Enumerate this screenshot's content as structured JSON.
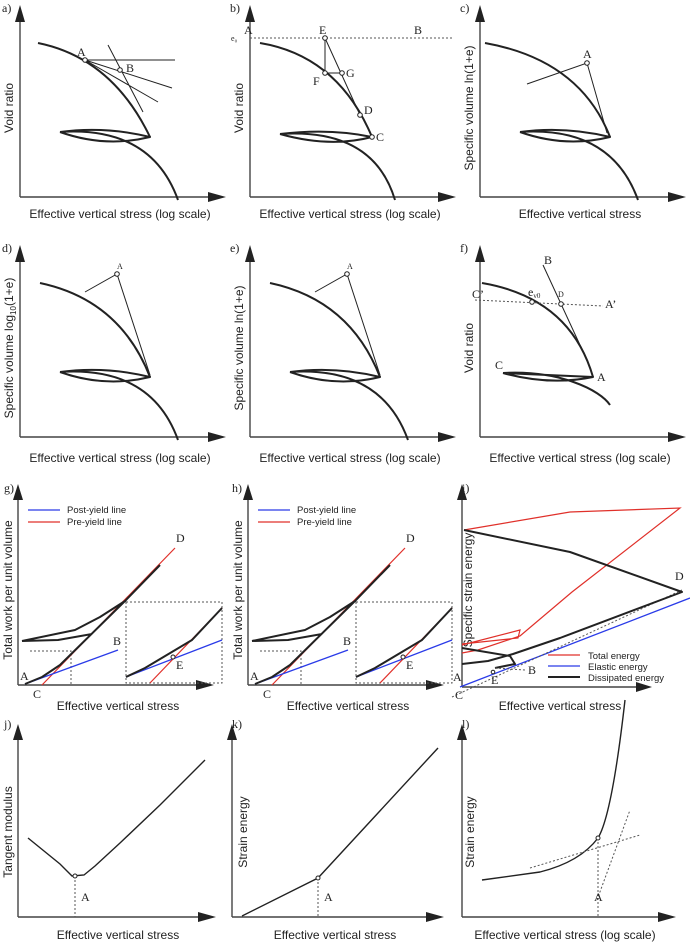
{
  "panels": {
    "a": {
      "tag": "a)",
      "ylabel": "Void ratio",
      "xlabel": "Effective vertical stress (log scale)",
      "points": {
        "A": "A",
        "B": "B"
      }
    },
    "b": {
      "tag": "b)",
      "ylabel": "Void ratio",
      "xlabel": "Effective vertical stress (log scale)",
      "e0": "e₀",
      "points": {
        "A": "A",
        "B": "B",
        "C": "C",
        "D": "D",
        "E": "E",
        "F": "F",
        "G": "G"
      }
    },
    "c": {
      "tag": "c)",
      "ylabel": "Specific volume ln(1+e)",
      "xlabel": "Effective vertical stress",
      "points": {
        "A": "A"
      }
    },
    "d": {
      "tag": "d)",
      "ylabel_pre": "Specific volume log",
      "ylabel_sub": "10",
      "ylabel_post": "(1+e)",
      "xlabel": "Effective vertical stress (log scale)",
      "points": {
        "A": "A"
      }
    },
    "e": {
      "tag": "e)",
      "ylabel": "Specific volume ln(1+e)",
      "xlabel": "Effective vertical stress (log scale)",
      "points": {
        "A": "A"
      }
    },
    "f": {
      "tag": "f)",
      "ylabel": "Void ratio",
      "xlabel": "Effective vertical stress (log scale)",
      "points": {
        "A": "A",
        "Ap": "A’",
        "B": "B",
        "C": "C",
        "Cp": "C’",
        "D": "D",
        "ev0": "e",
        "ev0_sub": "v0"
      }
    },
    "g": {
      "tag": "g)",
      "ylabel": "Total work per unit volume",
      "xlabel": "Effective vertical stress",
      "legend": [
        "Post-yield line",
        "Pre-yield line"
      ],
      "points": {
        "A": "A",
        "B": "B",
        "C": "C",
        "D": "D",
        "E": "E"
      }
    },
    "h": {
      "tag": "h)",
      "ylabel": "Total work per unit volume",
      "xlabel": "Effective vertical stress",
      "legend": [
        "Post-yield line",
        "Pre-yield line"
      ],
      "points": {
        "A": "A",
        "B": "B",
        "C": "C",
        "D": "D",
        "E": "E"
      }
    },
    "i": {
      "tag": "i)",
      "ylabel": "Specific strain energy",
      "xlabel": "Effective vertical stress",
      "legend": [
        "Total energy",
        "Elastic energy",
        "Dissipated energy"
      ],
      "points": {
        "A": "A",
        "B": "B",
        "C": "C",
        "D": "D",
        "E": "E"
      }
    },
    "j": {
      "tag": "j)",
      "ylabel": "Tangent modulus",
      "xlabel": "Effective vertical stress",
      "points": {
        "A": "A"
      }
    },
    "k": {
      "tag": "k)",
      "ylabel": "Strain energy",
      "xlabel": "Effective vertical stress",
      "points": {
        "A": "A"
      }
    },
    "l": {
      "tag": "l)",
      "ylabel": "Strain energy",
      "xlabel": "Effective vertical stress (log scale)",
      "points": {
        "A": "A"
      }
    }
  },
  "colors": {
    "post_yield": "#2a3be8",
    "pre_yield": "#e0302a",
    "dissipated": "#222222"
  }
}
